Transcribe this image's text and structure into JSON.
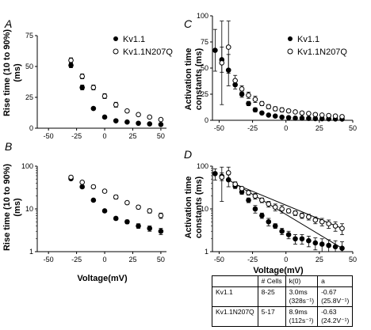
{
  "chart_data": [
    {
      "panel": "A",
      "type": "scatter",
      "xlabel": "",
      "ylabel": "Rise time (10 to 90%) (ms)",
      "xlim": [
        -60,
        55
      ],
      "ylim": [
        0,
        75
      ],
      "yscale": "linear",
      "xticks": [
        -50,
        -25,
        0,
        25,
        50
      ],
      "xtick_labels": [
        "-50",
        "-25",
        "0",
        "25",
        "50"
      ],
      "yticks": [
        0,
        25,
        50,
        75
      ],
      "ytick_labels": [
        "0",
        "25",
        "50",
        "75"
      ],
      "legend_position": "top-right",
      "series": [
        {
          "name": "Kv1.1",
          "marker": "filled-circle",
          "x": [
            -30,
            -20,
            -10,
            0,
            10,
            20,
            30,
            40,
            50
          ],
          "y": [
            51,
            33,
            16,
            9,
            6,
            5,
            4,
            3.5,
            3
          ],
          "err": [
            2,
            2,
            1,
            0.5,
            0.5,
            0.5,
            0.5,
            0.5,
            0.5
          ]
        },
        {
          "name": "Kv1.1N207Q",
          "marker": "open-circle",
          "x": [
            -30,
            -20,
            -10,
            0,
            10,
            20,
            30,
            40,
            50
          ],
          "y": [
            55,
            42,
            33,
            26,
            19,
            14,
            11,
            9,
            7
          ],
          "err": [
            2,
            2,
            2,
            2,
            2,
            1,
            1,
            1,
            1
          ]
        }
      ]
    },
    {
      "panel": "B",
      "type": "scatter",
      "xlabel": "Voltage(mV)",
      "ylabel": "Rise time (10 to 90%) (ms)",
      "xlim": [
        -60,
        55
      ],
      "ylim": [
        1,
        100
      ],
      "yscale": "log",
      "xticks": [
        -50,
        -25,
        0,
        25,
        50
      ],
      "xtick_labels": [
        "-50",
        "-25",
        "0",
        "25",
        "50"
      ],
      "yticks": [
        1,
        10,
        100
      ],
      "ytick_labels": [
        "1",
        "10",
        "100"
      ],
      "series": [
        {
          "name": "Kv1.1",
          "marker": "filled-circle",
          "x": [
            -30,
            -20,
            -10,
            0,
            10,
            20,
            30,
            40,
            50
          ],
          "y": [
            51,
            33,
            16,
            9,
            6,
            5,
            4,
            3.5,
            3
          ],
          "err": [
            2,
            2,
            1,
            0.5,
            0.5,
            0.5,
            0.5,
            0.5,
            0.5
          ]
        },
        {
          "name": "Kv1.1N207Q",
          "marker": "open-circle",
          "x": [
            -30,
            -20,
            -10,
            0,
            10,
            20,
            30,
            40,
            50
          ],
          "y": [
            55,
            42,
            33,
            26,
            19,
            14,
            11,
            9,
            7
          ],
          "err": [
            2,
            2,
            2,
            2,
            2,
            1,
            1,
            1,
            1
          ]
        }
      ]
    },
    {
      "panel": "C",
      "type": "scatter",
      "xlabel": "",
      "ylabel": "Activation time constants (ms)",
      "xlim": [
        -55,
        50
      ],
      "ylim": [
        0,
        100
      ],
      "yscale": "linear",
      "xticks": [
        -50,
        -25,
        0,
        25,
        50
      ],
      "xtick_labels": [
        "-50",
        "-25",
        "0",
        "25",
        "50"
      ],
      "yticks": [
        0,
        25,
        50,
        75,
        100
      ],
      "ytick_labels": [
        "0",
        "25",
        "50",
        "75",
        "100"
      ],
      "legend_position": "top-right",
      "series": [
        {
          "name": "Kv1.1",
          "marker": "filled-circle",
          "x": [
            -53,
            -48,
            -43,
            -38,
            -33,
            -28,
            -23,
            -18,
            -13,
            -8,
            -3,
            2,
            7,
            12,
            17,
            22,
            27,
            32,
            37,
            42
          ],
          "y": [
            67,
            58,
            48,
            34,
            25,
            16,
            10,
            7,
            5,
            4,
            3,
            2.5,
            2,
            2,
            1.8,
            1.6,
            1.5,
            1.4,
            1.3,
            1.2
          ],
          "err": [
            20,
            12,
            15,
            4,
            3,
            2,
            2,
            1,
            1,
            0.5,
            0.5,
            0.5,
            0.5,
            0.5,
            0.5,
            0.5,
            0.5,
            0.5,
            0.5,
            0.5
          ]
        },
        {
          "name": "Kv1.1N207Q",
          "marker": "open-circle",
          "x": [
            -48,
            -43,
            -38,
            -33,
            -28,
            -23,
            -18,
            -13,
            -8,
            -3,
            2,
            7,
            12,
            17,
            22,
            27,
            32,
            37,
            42
          ],
          "y": [
            55,
            70,
            38,
            30,
            24,
            20,
            16,
            13,
            11,
            10,
            9,
            8,
            7,
            6.5,
            5.5,
            5,
            4.5,
            4,
            3.5
          ],
          "err": [
            40,
            25,
            5,
            3,
            3,
            3,
            2,
            2,
            2,
            2,
            1,
            1,
            1,
            1,
            1,
            1,
            1,
            1,
            1
          ]
        }
      ]
    },
    {
      "panel": "D",
      "type": "scatter",
      "xlabel": "Voltage(mV)",
      "ylabel": "Activation time constants (ms)",
      "xlim": [
        -55,
        50
      ],
      "ylim": [
        1,
        100
      ],
      "yscale": "log",
      "xticks": [
        -50,
        -25,
        0,
        25,
        50
      ],
      "xtick_labels": [
        "-50",
        "-25",
        "0",
        "25",
        "50"
      ],
      "yticks": [
        1,
        10,
        100
      ],
      "ytick_labels": [
        "1",
        "10",
        "100"
      ],
      "fit_lines": "two solid exponential fit lines through each series",
      "series": [
        {
          "name": "Kv1.1",
          "marker": "filled-circle",
          "x": [
            -53,
            -48,
            -43,
            -38,
            -33,
            -28,
            -23,
            -18,
            -13,
            -8,
            -3,
            2,
            7,
            12,
            17,
            22,
            27,
            32,
            37,
            42
          ],
          "y": [
            67,
            58,
            48,
            34,
            25,
            16,
            10,
            7,
            5,
            4,
            3,
            2.5,
            2,
            2,
            1.8,
            1.6,
            1.5,
            1.4,
            1.3,
            1.2
          ],
          "err": [
            20,
            12,
            15,
            4,
            3,
            2,
            2,
            1,
            1,
            0.5,
            0.5,
            0.5,
            0.5,
            0.5,
            0.5,
            0.5,
            0.5,
            0.5,
            0.5,
            0.5
          ]
        },
        {
          "name": "Kv1.1N207Q",
          "marker": "open-circle",
          "x": [
            -48,
            -43,
            -38,
            -33,
            -28,
            -23,
            -18,
            -13,
            -8,
            -3,
            2,
            7,
            12,
            17,
            22,
            27,
            32,
            37,
            42
          ],
          "y": [
            55,
            70,
            38,
            30,
            24,
            20,
            16,
            13,
            11,
            10,
            9,
            8,
            7,
            6.5,
            5.5,
            5,
            4.5,
            4,
            3.5
          ],
          "err": [
            40,
            25,
            5,
            3,
            3,
            3,
            2,
            2,
            2,
            2,
            1,
            1,
            1,
            1,
            1,
            1,
            1,
            1,
            1
          ]
        }
      ],
      "fit_table": {
        "headers": [
          "",
          "# Cells",
          "k(0)",
          "a"
        ],
        "rows": [
          {
            "name": "Kv1.1",
            "cells": "8-25",
            "k0": "3.0ms",
            "k0_rate": "(328s⁻¹)",
            "a": "-0.67",
            "a_rate": "(25.8V⁻¹)"
          },
          {
            "name": "Kv1.1N207Q",
            "cells": "5-17",
            "k0": "8.9ms",
            "k0_rate": "(112s⁻¹)",
            "a": "-0.63",
            "a_rate": "(24.2V⁻¹)"
          }
        ]
      }
    }
  ],
  "panels": {
    "A": {
      "label": "A",
      "ylabel1": "Rise time (10 to 90%)",
      "ylabel2": "(ms)"
    },
    "B": {
      "label": "B",
      "ylabel1": "Rise time (10 to 90%)",
      "ylabel2": "(ms)",
      "xlabel": "Voltage(mV)"
    },
    "C": {
      "label": "C",
      "ylabel1": "Activation time",
      "ylabel2": "constants (ms)"
    },
    "D": {
      "label": "D",
      "ylabel1": "Activation time",
      "ylabel2": "constants (ms)",
      "xlabel": "Voltage(mV)"
    }
  },
  "legend": {
    "s1": "Kv1.1",
    "s2": "Kv1.1N207Q"
  }
}
